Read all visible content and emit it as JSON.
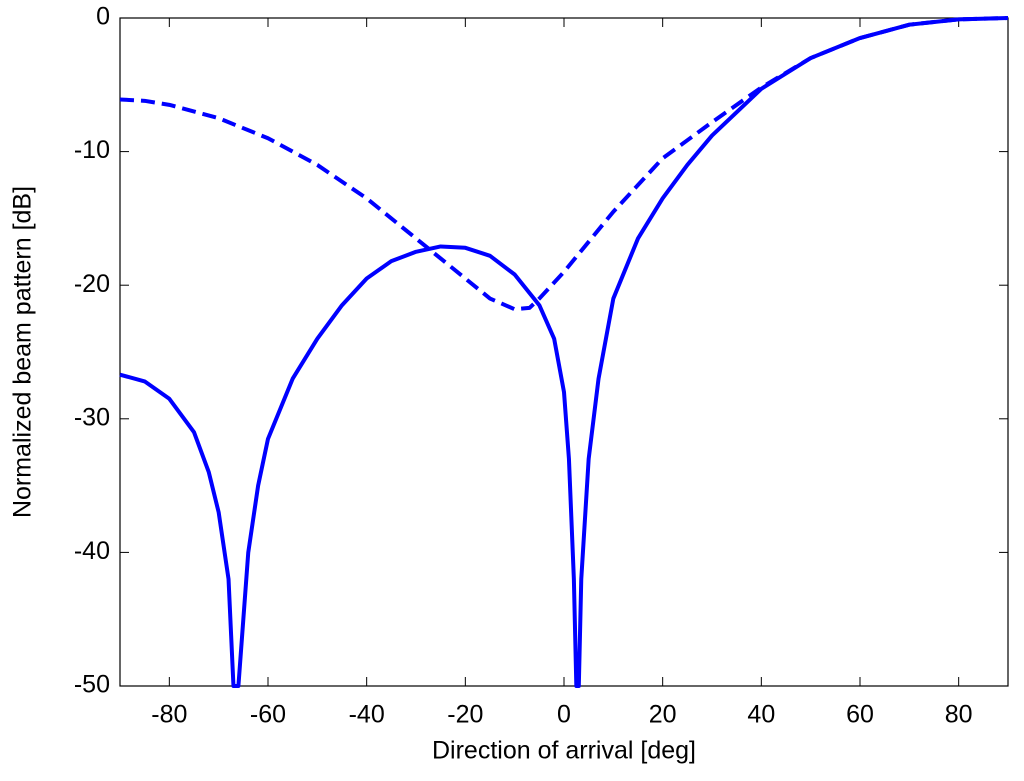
{
  "chart_data": {
    "type": "line",
    "xlabel": "Direction of arrival [deg]",
    "ylabel": "Normalized beam pattern [dB]",
    "xlim": [
      -90,
      90
    ],
    "xticks": [
      -80,
      -60,
      -40,
      -20,
      0,
      20,
      40,
      60,
      80
    ],
    "ylim": [
      -50,
      0
    ],
    "yticks": [
      -50,
      -40,
      -30,
      -20,
      -10,
      0
    ],
    "grid": false,
    "series": [
      {
        "color": "#0000ff",
        "linestyle": "solid",
        "x": [
          -90,
          -85,
          -80,
          -75,
          -72,
          -70,
          -68,
          -67,
          -66,
          -64,
          -62,
          -60,
          -55,
          -50,
          -45,
          -40,
          -35,
          -30,
          -25,
          -20,
          -15,
          -10,
          -5,
          -2,
          0,
          1,
          2,
          2.5,
          3,
          3.5,
          5,
          7,
          10,
          15,
          20,
          25,
          30,
          40,
          50,
          60,
          70,
          80,
          90
        ],
        "values": [
          -26.7,
          -27.2,
          -28.5,
          -31,
          -34,
          -37,
          -42,
          -50,
          -50,
          -40,
          -35,
          -31.5,
          -27,
          -24,
          -21.5,
          -19.5,
          -18.2,
          -17.5,
          -17.1,
          -17.2,
          -17.8,
          -19.2,
          -21.5,
          -24,
          -28,
          -33,
          -42,
          -50,
          -50,
          -42,
          -33,
          -27,
          -21,
          -16.5,
          -13.5,
          -11,
          -8.8,
          -5.3,
          -3,
          -1.5,
          -0.5,
          -0.1,
          0
        ]
      },
      {
        "color": "#0000ff",
        "linestyle": "dashed",
        "x": [
          -90,
          -85,
          -80,
          -70,
          -60,
          -50,
          -40,
          -30,
          -20,
          -15,
          -10,
          -7,
          -5,
          0,
          10,
          20,
          30,
          40,
          50,
          60,
          70,
          80,
          90
        ],
        "values": [
          -6.1,
          -6.2,
          -6.5,
          -7.5,
          -9,
          -11,
          -13.5,
          -16.5,
          -19.5,
          -21,
          -21.8,
          -21.7,
          -21,
          -19,
          -14.5,
          -10.5,
          -7.8,
          -5.2,
          -3,
          -1.5,
          -0.5,
          -0.1,
          0
        ]
      }
    ]
  }
}
